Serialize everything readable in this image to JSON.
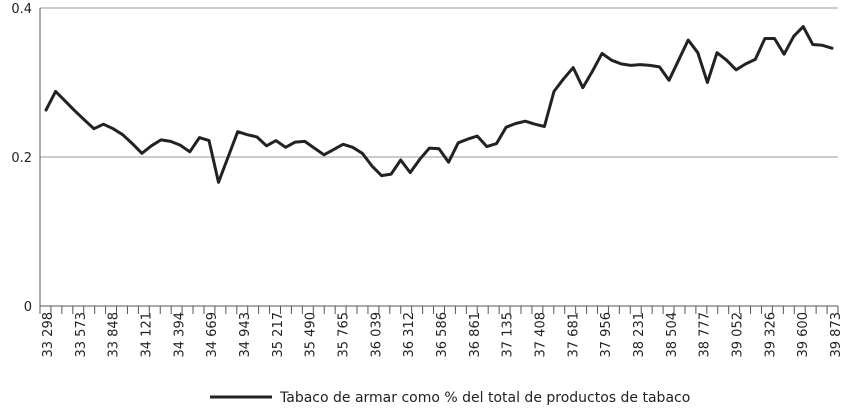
{
  "chart_data": {
    "type": "line",
    "title": "",
    "xlabel": "",
    "ylabel": "",
    "ylim": [
      0,
      0.4
    ],
    "y_ticks": [
      "0",
      "0.2",
      "0.4"
    ],
    "y_tick_values": [
      0,
      0.2,
      0.4
    ],
    "grid": "horizontal",
    "legend_position": "bottom",
    "colors": {
      "line": "#222222",
      "grid": "#999999",
      "axis": "#555555"
    },
    "x_tick_labels": [
      "33 298",
      "33 573",
      "33 848",
      "34 121",
      "34 394",
      "34 669",
      "34 943",
      "35 217",
      "35 490",
      "35 765",
      "36 039",
      "36 312",
      "36 586",
      "36 861",
      "37 135",
      "37 408",
      "37 681",
      "37 956",
      "38 231",
      "38 504",
      "38 777",
      "39 052",
      "39 326",
      "39 600",
      "39 873"
    ],
    "series": [
      {
        "name": "Tabaco de armar como % del total de productos de tabaco",
        "values": [
          0.263,
          0.288,
          0.275,
          0.262,
          0.25,
          0.238,
          0.244,
          0.238,
          0.23,
          0.218,
          0.205,
          0.215,
          0.223,
          0.221,
          0.216,
          0.207,
          0.226,
          0.222,
          0.166,
          0.2,
          0.234,
          0.23,
          0.227,
          0.215,
          0.222,
          0.213,
          0.22,
          0.221,
          0.212,
          0.203,
          0.21,
          0.217,
          0.213,
          0.205,
          0.188,
          0.175,
          0.177,
          0.196,
          0.179,
          0.197,
          0.212,
          0.211,
          0.193,
          0.219,
          0.224,
          0.228,
          0.214,
          0.218,
          0.24,
          0.245,
          0.248,
          0.244,
          0.241,
          0.288,
          0.305,
          0.32,
          0.293,
          0.315,
          0.339,
          0.33,
          0.325,
          0.323,
          0.324,
          0.323,
          0.321,
          0.303,
          0.33,
          0.357,
          0.34,
          0.3,
          0.34,
          0.33,
          0.317,
          0.325,
          0.331,
          0.359,
          0.359,
          0.338,
          0.362,
          0.375,
          0.351,
          0.35,
          0.346
        ]
      }
    ]
  }
}
